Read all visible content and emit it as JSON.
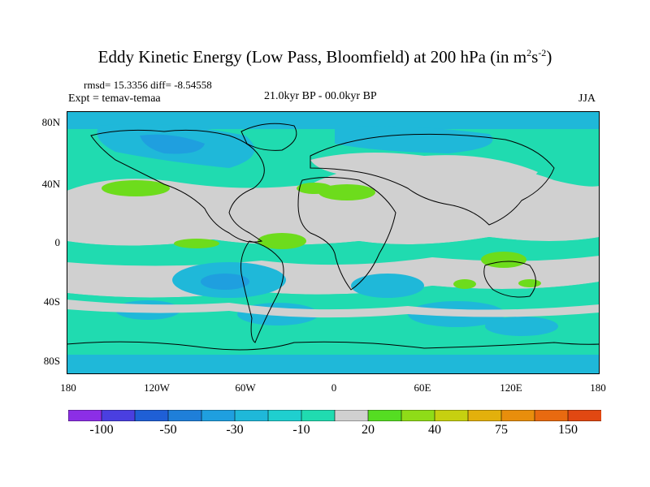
{
  "title_main": "Eddy Kinetic Energy (Low Pass, Bloomfield) at 200 hPa (in m",
  "title_sup1": "2",
  "title_mid": "s",
  "title_sup2": "-2",
  "title_end": ")",
  "stats_line": "rmsd= 15.3356 diff= -8.54558",
  "experiment": "Expt = temav-temaa",
  "period": "21.0kyr BP - 00.0kyr BP",
  "season": "JJA",
  "lat_labels": [
    "80N",
    "40N",
    "0",
    "40S",
    "80S"
  ],
  "lon_labels": [
    "180",
    "120W",
    "60W",
    "0",
    "60E",
    "120E",
    "180"
  ],
  "colorbar": {
    "colors": [
      "#8c2ee6",
      "#4a3fe0",
      "#1f5fd6",
      "#1f7fd9",
      "#1f9fdf",
      "#1fb8d9",
      "#1fcfcf",
      "#20dbb0",
      "#d0d0d0",
      "#55dd22",
      "#8fdc18",
      "#c6d010",
      "#e3b00c",
      "#e88e0c",
      "#e86a10",
      "#e14812"
    ],
    "tick_labels": [
      "-100",
      "-50",
      "-30",
      "-10",
      "20",
      "40",
      "75",
      "150"
    ]
  },
  "palette": {
    "land_neutral": "#d0d0d0",
    "light_negative": "#20dbb0",
    "mid_negative": "#1fb8d9",
    "strong_negative": "#1f7fd9",
    "positive": "#6ddc1c"
  }
}
